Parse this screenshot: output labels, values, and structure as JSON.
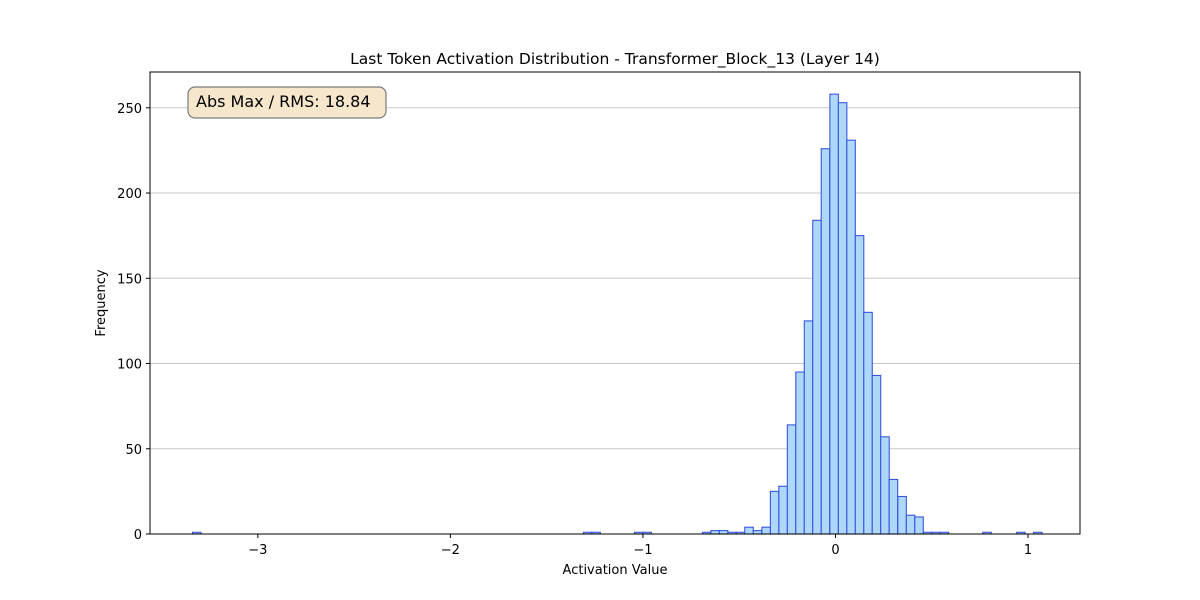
{
  "chart_data": {
    "type": "bar",
    "title": "Last Token Activation Distribution - Transformer_Block_13 (Layer 14)",
    "xlabel": "Activation Value",
    "ylabel": "Frequency",
    "xlim": [
      -3.56,
      1.27
    ],
    "ylim": [
      0,
      271
    ],
    "grid": "y",
    "x_ticks": [
      -3,
      -2,
      -1,
      0,
      1
    ],
    "x_tick_labels": [
      "−3",
      "−2",
      "−1",
      "0",
      "1"
    ],
    "y_ticks": [
      0,
      50,
      100,
      150,
      200,
      250
    ],
    "y_tick_labels": [
      "0",
      "50",
      "100",
      "150",
      "200",
      "250"
    ],
    "bin_width": 0.0441,
    "bins": [
      {
        "x": -3.339,
        "count": 1
      },
      {
        "x": -1.309,
        "count": 1
      },
      {
        "x": -1.265,
        "count": 1
      },
      {
        "x": -1.044,
        "count": 1
      },
      {
        "x": -1.0,
        "count": 1
      },
      {
        "x": -0.691,
        "count": 1
      },
      {
        "x": -0.647,
        "count": 2
      },
      {
        "x": -0.603,
        "count": 2
      },
      {
        "x": -0.559,
        "count": 1
      },
      {
        "x": -0.515,
        "count": 1
      },
      {
        "x": -0.471,
        "count": 4
      },
      {
        "x": -0.427,
        "count": 2
      },
      {
        "x": -0.382,
        "count": 4
      },
      {
        "x": -0.338,
        "count": 25
      },
      {
        "x": -0.294,
        "count": 28
      },
      {
        "x": -0.25,
        "count": 64
      },
      {
        "x": -0.206,
        "count": 95
      },
      {
        "x": -0.162,
        "count": 125
      },
      {
        "x": -0.118,
        "count": 184
      },
      {
        "x": -0.074,
        "count": 226
      },
      {
        "x": -0.029,
        "count": 258
      },
      {
        "x": 0.015,
        "count": 253
      },
      {
        "x": 0.059,
        "count": 231
      },
      {
        "x": 0.103,
        "count": 175
      },
      {
        "x": 0.147,
        "count": 130
      },
      {
        "x": 0.191,
        "count": 93
      },
      {
        "x": 0.235,
        "count": 57
      },
      {
        "x": 0.279,
        "count": 32
      },
      {
        "x": 0.324,
        "count": 22
      },
      {
        "x": 0.368,
        "count": 11
      },
      {
        "x": 0.412,
        "count": 10
      },
      {
        "x": 0.456,
        "count": 1
      },
      {
        "x": 0.5,
        "count": 1
      },
      {
        "x": 0.544,
        "count": 1
      },
      {
        "x": 0.765,
        "count": 1
      },
      {
        "x": 0.941,
        "count": 1
      },
      {
        "x": 1.029,
        "count": 1
      }
    ],
    "annotation": "Abs Max / RMS: 18.84",
    "annotation_position": "top-left",
    "colors": {
      "bar_fill": "#add8f7",
      "bar_edge": "#3a55e0",
      "grid": "#c8c8c8",
      "annotation_fill": "#f5e6cc",
      "annotation_edge": "#7a7a7a"
    }
  }
}
